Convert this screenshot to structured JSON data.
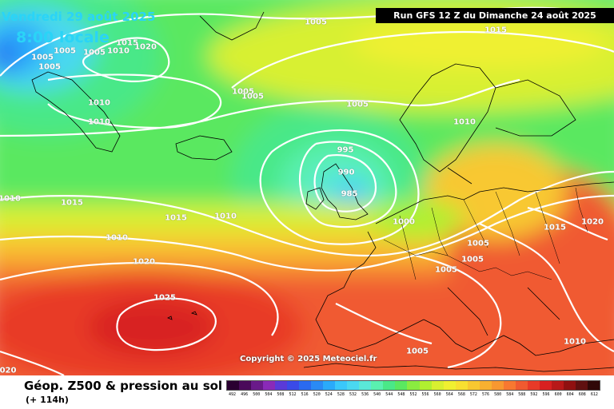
{
  "header": {
    "run": "Run GFS 12 Z du Dimanche 24 août 2025",
    "valid_date": "Vendredi 29 août 2025",
    "valid_time": "8:00 locale"
  },
  "copyright": "Copyright © 2025 Meteociel.fr",
  "footer": {
    "product": "Géop. Z500 & pression au sol",
    "lead": "(+ 114h)"
  },
  "scale": {
    "values": [
      "492",
      "496",
      "500",
      "504",
      "508",
      "512",
      "516",
      "520",
      "524",
      "528",
      "532",
      "536",
      "540",
      "544",
      "548",
      "552",
      "556",
      "560",
      "564",
      "568",
      "572",
      "576",
      "580",
      "584",
      "588",
      "592",
      "596",
      "600",
      "604",
      "608",
      "612"
    ],
    "colors": [
      "#2a0030",
      "#4a0a5a",
      "#6a1a8a",
      "#8a2ab8",
      "#5a3ad8",
      "#3a4ae8",
      "#2a6af0",
      "#2a8af5",
      "#2aaafa",
      "#3ac8fa",
      "#4ad8f0",
      "#5ae8d8",
      "#5af0b0",
      "#4ae888",
      "#5ae860",
      "#8aec40",
      "#b0f030",
      "#d8f030",
      "#f0f030",
      "#f8e030",
      "#f8c830",
      "#f8b030",
      "#f89830",
      "#f87830",
      "#f05a30",
      "#e83a28",
      "#d82020",
      "#b81818",
      "#901010",
      "#601010",
      "#300808"
    ]
  },
  "isobars": [
    {
      "label": "1005",
      "pos": "top-center"
    },
    {
      "label": "1015",
      "pos": "top-right"
    },
    {
      "label": "1005",
      "pos": "greenland-1"
    },
    {
      "label": "1005",
      "pos": "greenland-2"
    },
    {
      "label": "1005",
      "pos": "greenland-3"
    },
    {
      "label": "1005",
      "pos": "greenland-4"
    },
    {
      "label": "1015",
      "pos": "greenland-5"
    },
    {
      "label": "1020",
      "pos": "greenland-6"
    },
    {
      "label": "1010",
      "pos": "greenland-7"
    },
    {
      "label": "1010",
      "pos": "greenland-8"
    },
    {
      "label": "1010",
      "pos": "greenland-9"
    },
    {
      "label": "1005",
      "pos": "north-atlantic-1"
    },
    {
      "label": "1005",
      "pos": "north-atlantic-2"
    },
    {
      "label": "1005",
      "pos": "north-sea"
    },
    {
      "label": "1010",
      "pos": "scandinavia"
    },
    {
      "label": "995",
      "pos": "low-1"
    },
    {
      "label": "990",
      "pos": "low-2"
    },
    {
      "label": "985",
      "pos": "low-center"
    },
    {
      "label": "1000",
      "pos": "north-sea-south"
    },
    {
      "label": "1010",
      "pos": "west-edge"
    },
    {
      "label": "1015",
      "pos": "atlantic-1"
    },
    {
      "label": "1015",
      "pos": "atlantic-2"
    },
    {
      "label": "1010",
      "pos": "atlantic-3"
    },
    {
      "label": "1010",
      "pos": "atlantic-4"
    },
    {
      "label": "1020",
      "pos": "atlantic-5"
    },
    {
      "label": "1025",
      "pos": "azores-high"
    },
    {
      "label": "1020",
      "pos": "east-1"
    },
    {
      "label": "1015",
      "pos": "east-2"
    },
    {
      "label": "1005",
      "pos": "alps-1"
    },
    {
      "label": "1005",
      "pos": "alps-2"
    },
    {
      "label": "1005",
      "pos": "alps-3"
    },
    {
      "label": "1010",
      "pos": "balkans"
    },
    {
      "label": "1005",
      "pos": "mediterranean"
    },
    {
      "label": "020",
      "pos": "southwest-edge"
    }
  ]
}
